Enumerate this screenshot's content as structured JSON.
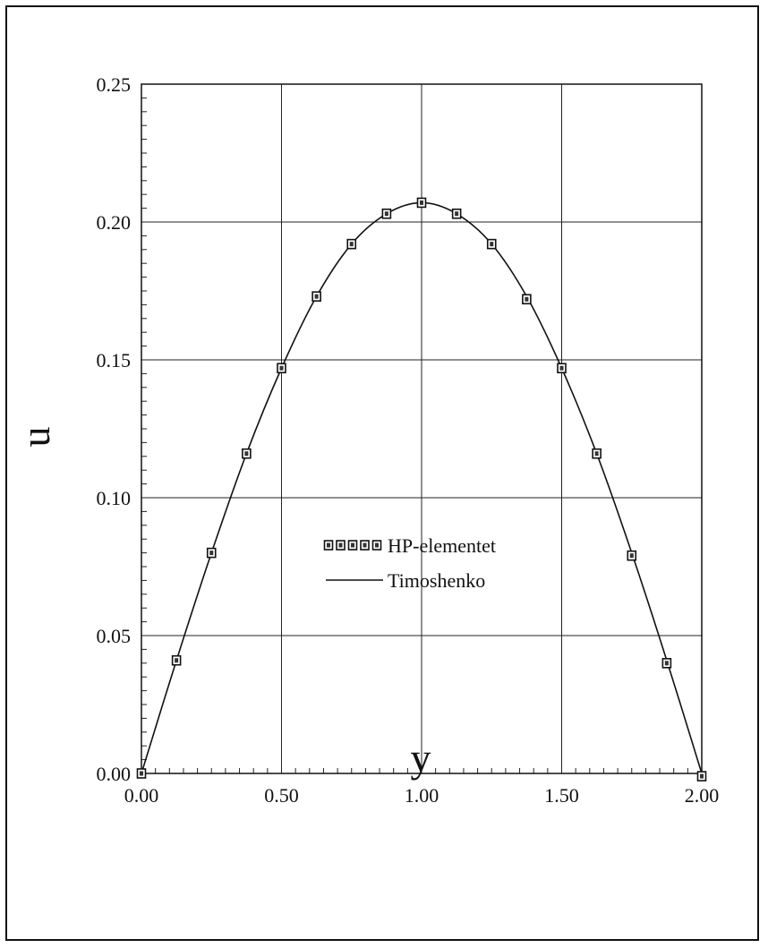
{
  "chart_data": {
    "type": "line",
    "title": "",
    "xlabel": "y",
    "ylabel": "u",
    "xlim": [
      0,
      2
    ],
    "ylim": [
      0,
      0.25
    ],
    "x_ticks": [
      "0.00",
      "0.50",
      "1.00",
      "1.50",
      "2.00"
    ],
    "y_ticks": [
      "0.00",
      "0.05",
      "0.10",
      "0.15",
      "0.20",
      "0.25"
    ],
    "grid": true,
    "legend_position": "center",
    "series": [
      {
        "name": "HP-elementet",
        "style": "markers",
        "x": [
          0.0,
          0.125,
          0.25,
          0.375,
          0.5,
          0.625,
          0.75,
          0.875,
          1.0,
          1.125,
          1.25,
          1.375,
          1.5,
          1.625,
          1.75,
          1.875,
          2.0
        ],
        "y": [
          0.0,
          0.041,
          0.08,
          0.116,
          0.147,
          0.173,
          0.192,
          0.203,
          0.207,
          0.203,
          0.192,
          0.172,
          0.147,
          0.116,
          0.079,
          0.04,
          -0.001
        ]
      },
      {
        "name": "Timoshenko",
        "style": "line",
        "x": [
          0.0,
          0.125,
          0.25,
          0.375,
          0.5,
          0.625,
          0.75,
          0.875,
          1.0,
          1.125,
          1.25,
          1.375,
          1.5,
          1.625,
          1.75,
          1.875,
          2.0
        ],
        "y": [
          0.0,
          0.041,
          0.08,
          0.116,
          0.147,
          0.173,
          0.192,
          0.203,
          0.207,
          0.203,
          0.192,
          0.173,
          0.147,
          0.116,
          0.08,
          0.041,
          0.0
        ]
      }
    ]
  }
}
